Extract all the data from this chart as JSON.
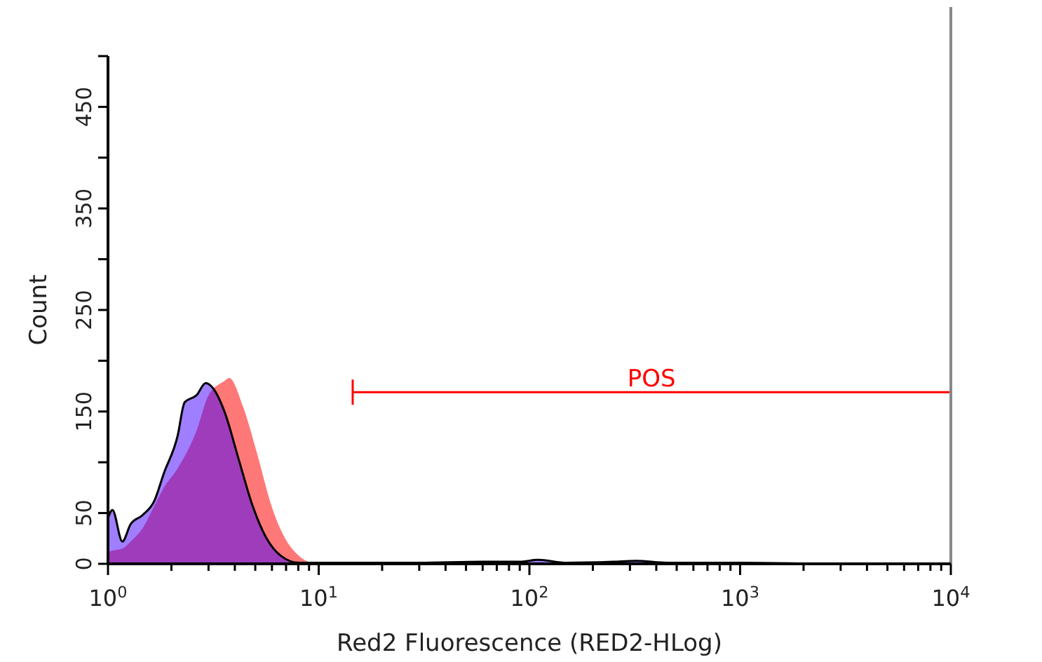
{
  "chart_data": {
    "type": "area",
    "xlabel": "Red2 Fluorescence (RED2-HLog)",
    "ylabel": "Count",
    "log": "x",
    "grid": false,
    "xlim": [
      1,
      10000
    ],
    "ylim": [
      0,
      500
    ],
    "xticks": [
      {
        "value": 1,
        "label": "10$^{0}$"
      },
      {
        "value": 2,
        "label": null
      },
      {
        "value": 3,
        "label": null
      },
      {
        "value": 4,
        "label": null
      },
      {
        "value": 5,
        "label": null
      },
      {
        "value": 6,
        "label": null
      },
      {
        "value": 7,
        "label": null
      },
      {
        "value": 8,
        "label": null
      },
      {
        "value": 9,
        "label": null
      },
      {
        "value": 10,
        "label": "10$^{1}$"
      },
      {
        "value": 20,
        "label": null
      },
      {
        "value": 30,
        "label": null
      },
      {
        "value": 40,
        "label": null
      },
      {
        "value": 50,
        "label": null
      },
      {
        "value": 60,
        "label": null
      },
      {
        "value": 70,
        "label": null
      },
      {
        "value": 80,
        "label": null
      },
      {
        "value": 90,
        "label": null
      },
      {
        "value": 100,
        "label": "10$^{2}$"
      },
      {
        "value": 200,
        "label": null
      },
      {
        "value": 300,
        "label": null
      },
      {
        "value": 400,
        "label": null
      },
      {
        "value": 500,
        "label": null
      },
      {
        "value": 600,
        "label": null
      },
      {
        "value": 700,
        "label": null
      },
      {
        "value": 800,
        "label": null
      },
      {
        "value": 900,
        "label": null
      },
      {
        "value": 1000,
        "label": "10$^{3}$"
      },
      {
        "value": 2000,
        "label": null
      },
      {
        "value": 3000,
        "label": null
      },
      {
        "value": 4000,
        "label": null
      },
      {
        "value": 5000,
        "label": null
      },
      {
        "value": 6000,
        "label": null
      },
      {
        "value": 7000,
        "label": null
      },
      {
        "value": 8000,
        "label": null
      },
      {
        "value": 9000,
        "label": null
      },
      {
        "value": 10000,
        "label": "10$^{4}$"
      }
    ],
    "yticks": [
      0,
      50,
      {
        "value": 100,
        "label": null
      },
      150,
      {
        "value": 200,
        "label": null
      },
      250,
      {
        "value": 300,
        "label": null
      },
      350,
      {
        "value": 400,
        "label": null
      },
      450,
      {
        "value": 500,
        "label": null
      }
    ],
    "series": [
      {
        "color": "#ff7878",
        "x": [
          1,
          1.05,
          1.17,
          1.28,
          1.46,
          1.66,
          1.84,
          2.14,
          2.63,
          3.0,
          3.57,
          3.76,
          4.39,
          5.11,
          5.97,
          6.93,
          8.05,
          9.4,
          12,
          10000
        ],
        "values": [
          12,
          13,
          15,
          22,
          35,
          57,
          75,
          94,
          131,
          166,
          180,
          183,
          154,
          108,
          57,
          25,
          8,
          1,
          0,
          0
        ]
      },
      {
        "type": "line",
        "color": "#ff0000",
        "x": [
          14.5,
          10000
        ],
        "values": [
          169,
          169
        ]
      },
      {
        "color": "#4000ff",
        "x": [
          1,
          1.05,
          1.17,
          1.28,
          1.46,
          1.66,
          1.84,
          2.14,
          2.31,
          2.63,
          2.91,
          3.15,
          3.57,
          4.17,
          4.86,
          5.66,
          6.6,
          8.05,
          10,
          30,
          60,
          90,
          110,
          150,
          250,
          320,
          450,
          1000,
          3000,
          10000
        ],
        "values": [
          45,
          53,
          22,
          39,
          48,
          62,
          89,
          126,
          159,
          166,
          178,
          173,
          150,
          103,
          57,
          25,
          8,
          1,
          1,
          1,
          2,
          2,
          4,
          1,
          2,
          3,
          1,
          1,
          0,
          0
        ]
      }
    ],
    "annotations": [
      {
        "text": "POS",
        "x": 380,
        "y": 169
      }
    ]
  }
}
